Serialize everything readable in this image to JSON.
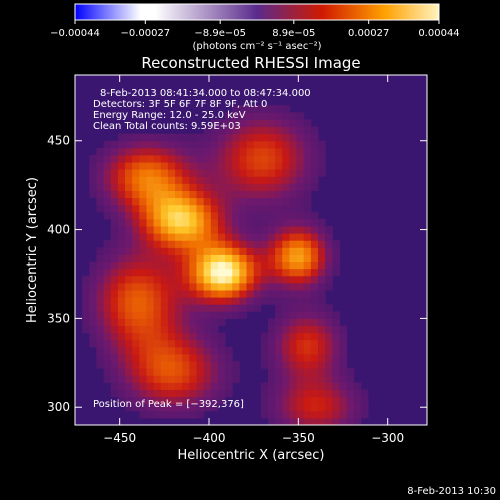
{
  "chart_data": {
    "type": "heatmap",
    "title": "Reconstructed RHESSI Image",
    "xlabel": "Heliocentric X (arcsec)",
    "ylabel": "Heliocentric Y (arcsec)",
    "xlim": [
      -475,
      -278
    ],
    "ylim": [
      290,
      487
    ],
    "x_ticks": [
      {
        "value": -450,
        "label": "−450"
      },
      {
        "value": -400,
        "label": "−400"
      },
      {
        "value": -350,
        "label": "−350"
      },
      {
        "value": -300,
        "label": "−300"
      }
    ],
    "y_ticks": [
      {
        "value": 300,
        "label": "300"
      },
      {
        "value": 350,
        "label": "350"
      },
      {
        "value": 400,
        "label": "400"
      },
      {
        "value": 450,
        "label": "450"
      }
    ],
    "colorbar": {
      "range": [
        -0.00044,
        0.00044
      ],
      "ticks": [
        {
          "value": -0.00044,
          "label": "−0.00044"
        },
        {
          "value": -0.00027,
          "label": "−0.00027"
        },
        {
          "value": -8.9e-05,
          "label": "−8.9e−05"
        },
        {
          "value": 8.9e-05,
          "label": "8.9e−05"
        },
        {
          "value": 0.00027,
          "label": "0.00027"
        },
        {
          "value": 0.00044,
          "label": "0.00044"
        }
      ],
      "units": "(photons cm⁻² s⁻¹ asec⁻²)",
      "colors": [
        "#0000ff",
        "#ffffff",
        "#ffffff",
        "#5a2a8c",
        "#d01a00",
        "#ffa000",
        "#fff4c0"
      ]
    },
    "peak": {
      "x": -392,
      "y": 376
    },
    "sources": [
      {
        "x": -392,
        "y": 376,
        "sx": 14,
        "sy": 12,
        "amp": 1.0
      },
      {
        "x": -415,
        "y": 405,
        "sx": 16,
        "sy": 12,
        "amp": 0.8
      },
      {
        "x": -435,
        "y": 430,
        "sx": 18,
        "sy": 14,
        "amp": 0.65
      },
      {
        "x": -350,
        "y": 385,
        "sx": 12,
        "sy": 12,
        "amp": 0.75
      },
      {
        "x": -370,
        "y": 440,
        "sx": 20,
        "sy": 18,
        "amp": 0.55
      },
      {
        "x": -440,
        "y": 360,
        "sx": 18,
        "sy": 20,
        "amp": 0.6
      },
      {
        "x": -420,
        "y": 320,
        "sx": 20,
        "sy": 16,
        "amp": 0.55
      },
      {
        "x": -345,
        "y": 335,
        "sx": 14,
        "sy": 14,
        "amp": 0.5
      },
      {
        "x": -340,
        "y": 300,
        "sx": 18,
        "sy": 12,
        "amp": 0.45
      }
    ]
  },
  "annotations": {
    "time_range": "8-Feb-2013 08:41:34.000 to 08:47:34.000",
    "detectors": "Detectors: 3F 5F 6F 7F 8F 9F, Att 0",
    "energy": "Energy Range: 12.0 - 25.0 keV",
    "clean": "Clean     Total counts: 9.59E+03",
    "peak_text": "Position of Peak = [−392,376]"
  },
  "footer": {
    "timestamp": "8-Feb-2013 10:30"
  }
}
